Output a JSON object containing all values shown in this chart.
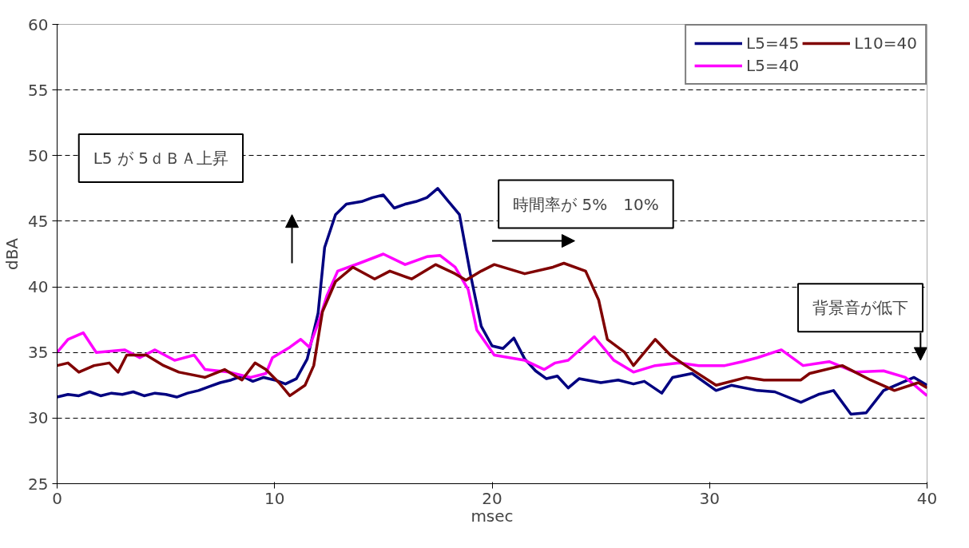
{
  "chart_data": {
    "type": "line",
    "xlabel": "msec",
    "ylabel": "dBA",
    "xlim": [
      0,
      40
    ],
    "xticks": [
      0,
      10,
      20,
      30,
      40
    ],
    "ylim": [
      25,
      60
    ],
    "yticks": [
      25,
      30,
      35,
      40,
      45,
      50,
      55,
      60
    ],
    "grid": "y",
    "legend": "top right",
    "line_style": "solid",
    "marker": "none",
    "annotations": [
      "L5 が 5ｄＢＡ上昇",
      "時間率が 5%　10%",
      "背景音が低下"
    ],
    "series": [
      {
        "name": "L5=45",
        "color": "#000080",
        "x": [
          0,
          0.5,
          1,
          1.5,
          2,
          2.5,
          3,
          3.5,
          4,
          4.5,
          5,
          5.5,
          6,
          6.5,
          7,
          7.5,
          8,
          8.5,
          9,
          9.5,
          10,
          10.5,
          11,
          11.5,
          12,
          12.3,
          12.8,
          13.3,
          14,
          14.5,
          15,
          15.5,
          16,
          16.5,
          17,
          17.5,
          18,
          18.5,
          19,
          19.5,
          20,
          20.5,
          21,
          21.5,
          22,
          22.5,
          23,
          23.5,
          24,
          25,
          25.8,
          26.5,
          27,
          27.8,
          28.3,
          29.2,
          30.3,
          31,
          32.2,
          33,
          34.2,
          35,
          35.7,
          36.5,
          37.2,
          38,
          38.7,
          39.4,
          40
        ],
        "values": [
          31.6,
          31.8,
          31.7,
          32.0,
          31.7,
          31.9,
          31.8,
          32.0,
          31.7,
          31.9,
          31.8,
          31.6,
          31.9,
          32.1,
          32.4,
          32.7,
          32.9,
          33.2,
          32.8,
          33.1,
          32.9,
          32.6,
          33.0,
          34.5,
          38.0,
          43.0,
          45.5,
          46.3,
          46.5,
          46.8,
          47.0,
          46.0,
          46.3,
          46.5,
          46.8,
          47.5,
          46.5,
          45.5,
          41.0,
          37.0,
          35.5,
          35.3,
          36.1,
          34.5,
          33.6,
          33.0,
          33.2,
          32.3,
          33.0,
          32.7,
          32.9,
          32.6,
          32.8,
          31.9,
          33.1,
          33.4,
          32.1,
          32.5,
          32.1,
          32.0,
          31.2,
          31.8,
          32.1,
          30.3,
          30.4,
          32.1,
          32.6,
          33.1,
          32.5
        ]
      },
      {
        "name": "L5=40",
        "color": "#ff00ff",
        "x": [
          0,
          0.5,
          1.2,
          1.8,
          2.5,
          3.1,
          3.8,
          4.5,
          5.4,
          6.3,
          6.8,
          7.9,
          8.9,
          9.6,
          9.9,
          10.7,
          11.2,
          11.6,
          12.1,
          12.4,
          12.9,
          13.9,
          15,
          16,
          17,
          17.6,
          18.3,
          18.9,
          19.3,
          20.1,
          21.5,
          22.4,
          22.9,
          23.5,
          24.7,
          25.6,
          26.5,
          27.5,
          28.6,
          29.5,
          30.7,
          31.5,
          32.2,
          33.3,
          34.3,
          35.5,
          36.7,
          38,
          39,
          40
        ],
        "values": [
          35.0,
          36.0,
          36.5,
          35.0,
          35.1,
          35.2,
          34.6,
          35.2,
          34.4,
          34.8,
          33.7,
          33.5,
          33.1,
          33.4,
          34.6,
          35.4,
          36.0,
          35.4,
          37.7,
          39.3,
          41.2,
          41.8,
          42.5,
          41.7,
          42.3,
          42.4,
          41.5,
          39.8,
          36.7,
          34.8,
          34.4,
          33.7,
          34.2,
          34.4,
          36.2,
          34.4,
          33.5,
          34.0,
          34.2,
          34.0,
          34.0,
          34.3,
          34.6,
          35.2,
          34.0,
          34.3,
          33.5,
          33.6,
          33.1,
          31.7
        ]
      },
      {
        "name": "L10=40",
        "color": "#800000",
        "x": [
          0,
          0.5,
          1,
          1.7,
          2.4,
          2.8,
          3.2,
          4.1,
          4.9,
          5.6,
          6.8,
          7.7,
          8.5,
          9.1,
          9.6,
          10.2,
          10.7,
          11.4,
          11.8,
          12.2,
          12.8,
          13.6,
          14.6,
          15.3,
          16.3,
          17.4,
          18.3,
          18.8,
          19.5,
          20.1,
          21.5,
          22.8,
          23.3,
          24.3,
          24.9,
          25.3,
          26.1,
          26.5,
          27.5,
          28.2,
          28.9,
          30.3,
          31.7,
          32.5,
          34.2,
          34.6,
          36.1,
          37.4,
          38.5,
          39.6,
          40
        ],
        "values": [
          34.0,
          34.2,
          33.5,
          34.0,
          34.2,
          33.5,
          34.8,
          34.8,
          34.0,
          33.5,
          33.1,
          33.7,
          32.9,
          34.2,
          33.7,
          32.7,
          31.7,
          32.5,
          34.0,
          38.1,
          40.4,
          41.5,
          40.6,
          41.2,
          40.6,
          41.7,
          41.0,
          40.5,
          41.2,
          41.7,
          41.0,
          41.5,
          41.8,
          41.2,
          39.0,
          36.0,
          35.0,
          34.0,
          36.0,
          34.8,
          34.0,
          32.5,
          33.1,
          32.9,
          32.9,
          33.4,
          34.0,
          32.9,
          32.1,
          32.7,
          32.3
        ]
      }
    ]
  }
}
